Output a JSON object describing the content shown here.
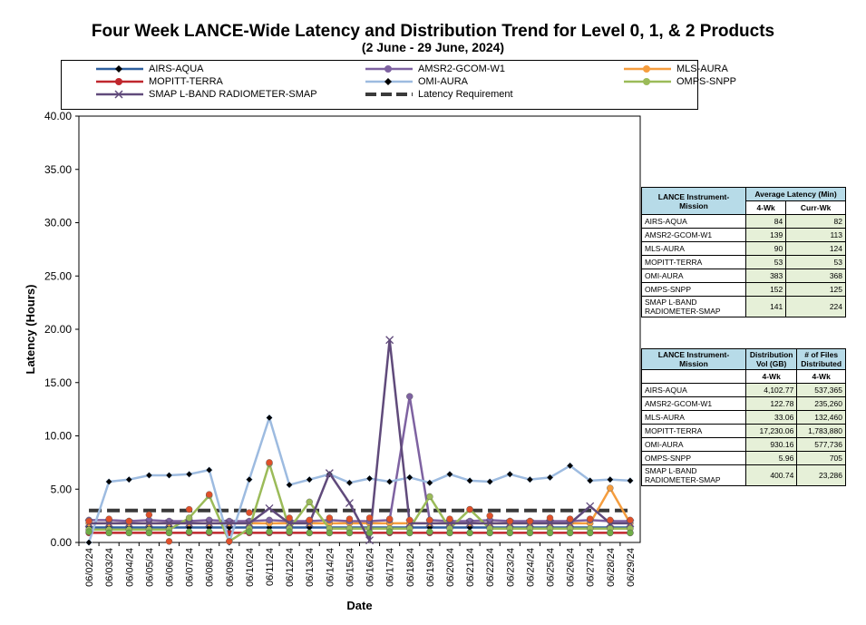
{
  "title": "Four Week LANCE-Wide Latency and Distribution Trend for Level 0, 1, & 2 Products",
  "subtitle": "(2  June   -  29  June,  2024)",
  "chart_data": {
    "type": "line",
    "xlabel": "Date",
    "ylabel": "Latency (Hours)",
    "ylim": [
      0,
      40
    ],
    "yticks": [
      "0.00",
      "5.00",
      "10.00",
      "15.00",
      "20.00",
      "25.00",
      "30.00",
      "35.00",
      "40.00"
    ],
    "categories": [
      "06/02/24",
      "06/03/24",
      "06/04/24",
      "06/05/24",
      "06/06/24",
      "06/07/24",
      "06/08/24",
      "06/09/24",
      "06/10/24",
      "06/11/24",
      "06/12/24",
      "06/13/24",
      "06/14/24",
      "06/15/24",
      "06/16/24",
      "06/17/24",
      "06/18/24",
      "06/19/24",
      "06/20/24",
      "06/21/24",
      "06/22/24",
      "06/23/24",
      "06/24/24",
      "06/25/24",
      "06/26/24",
      "06/27/24",
      "06/28/24",
      "06/29/24"
    ],
    "series": [
      {
        "name": "AIRS-AQUA",
        "color": "#2e5f9e",
        "marker": "diamond",
        "values": [
          1.4,
          1.4,
          1.4,
          1.4,
          1.4,
          1.4,
          1.4,
          1.4,
          1.4,
          1.4,
          1.4,
          1.4,
          1.4,
          1.4,
          1.4,
          1.4,
          1.4,
          1.4,
          1.4,
          1.4,
          1.4,
          1.4,
          1.4,
          1.4,
          1.4,
          1.4,
          1.4,
          1.4
        ]
      },
      {
        "name": "AMSR2-GCOM-W1",
        "color": "#7e62a1",
        "marker": "circle",
        "values": [
          2.1,
          2.1,
          2.0,
          2.1,
          2.0,
          2.0,
          2.1,
          2.0,
          2.0,
          2.1,
          2.0,
          2.0,
          2.1,
          2.0,
          2.0,
          2.1,
          13.7,
          2.1,
          2.0,
          2.0,
          2.1,
          2.0,
          2.0,
          2.0,
          2.0,
          2.1,
          2.0,
          2.0
        ]
      },
      {
        "name": "MLS-AURA",
        "color": "#f59d3e",
        "marker": "circle",
        "values": [
          1.8,
          1.8,
          1.8,
          1.8,
          1.8,
          1.8,
          1.8,
          1.8,
          1.8,
          1.8,
          1.8,
          1.8,
          1.8,
          1.8,
          1.8,
          1.8,
          1.8,
          1.8,
          1.8,
          1.8,
          1.8,
          1.8,
          1.8,
          1.8,
          1.8,
          1.8,
          5.1,
          1.8
        ]
      },
      {
        "name": "MOPITT-TERRA",
        "color": "#c0272d",
        "marker": "circle",
        "values": [
          0.9,
          0.9,
          0.9,
          0.9,
          0.9,
          0.9,
          0.9,
          0.9,
          0.9,
          0.9,
          0.9,
          0.9,
          0.9,
          0.9,
          0.9,
          0.9,
          0.9,
          0.9,
          0.9,
          0.9,
          0.9,
          0.9,
          0.9,
          0.9,
          0.9,
          0.9,
          0.9,
          0.9
        ]
      },
      {
        "name": "OMI-AURA",
        "color": "#9dbbe0",
        "marker": "diamond",
        "values": [
          0.0,
          5.7,
          5.9,
          6.3,
          6.3,
          6.4,
          6.8,
          0.0,
          5.9,
          11.7,
          5.4,
          5.9,
          6.4,
          5.6,
          6.0,
          5.7,
          6.1,
          5.6,
          6.4,
          5.8,
          5.7,
          6.4,
          5.9,
          6.1,
          7.2,
          5.8,
          5.9,
          5.8
        ]
      },
      {
        "name": "OMPS-SNPP",
        "color": "#9bbb59",
        "marker": "circle",
        "values": [
          1.2,
          1.2,
          1.2,
          1.2,
          1.2,
          2.3,
          4.4,
          0.1,
          1.3,
          7.4,
          1.3,
          3.8,
          1.3,
          1.3,
          1.3,
          1.3,
          1.3,
          4.3,
          1.3,
          3.1,
          1.3,
          1.3,
          1.3,
          1.3,
          1.3,
          1.3,
          1.3,
          1.3
        ]
      },
      {
        "name": "SMAP L-BAND RADIOMETER-SMAP",
        "color": "#604a7b",
        "marker": "x",
        "values": [
          1.8,
          1.8,
          1.8,
          1.8,
          1.8,
          1.8,
          1.8,
          1.8,
          1.8,
          3.2,
          1.8,
          1.8,
          6.5,
          3.7,
          0.2,
          19.0,
          1.8,
          1.8,
          1.8,
          1.8,
          1.8,
          1.8,
          1.8,
          1.8,
          1.8,
          3.4,
          1.8,
          1.8
        ]
      },
      {
        "name": "Latency Requirement",
        "color": "#3a3a3a",
        "marker": "none",
        "dashed": true,
        "values": [
          3,
          3,
          3,
          3,
          3,
          3,
          3,
          3,
          3,
          3,
          3,
          3,
          3,
          3,
          3,
          3,
          3,
          3,
          3,
          3,
          3,
          3,
          3,
          3,
          3,
          3,
          3,
          3
        ]
      }
    ],
    "overlay_points": [
      {
        "series": "OMPS-SNPP",
        "color": "#70ad47",
        "points": [
          [
            0,
            1.0
          ],
          [
            1,
            0.9
          ],
          [
            2,
            0.9
          ],
          [
            3,
            0.9
          ],
          [
            4,
            0.9
          ],
          [
            5,
            1.0
          ],
          [
            6,
            1.0
          ],
          [
            8,
            1.0
          ],
          [
            9,
            1.0
          ],
          [
            10,
            1.0
          ],
          [
            11,
            0.9
          ],
          [
            12,
            0.9
          ],
          [
            13,
            0.9
          ],
          [
            14,
            0.9
          ],
          [
            15,
            1.0
          ],
          [
            16,
            0.9
          ],
          [
            17,
            1.0
          ],
          [
            18,
            0.9
          ],
          [
            19,
            0.9
          ],
          [
            20,
            0.9
          ],
          [
            21,
            0.9
          ],
          [
            22,
            0.9
          ],
          [
            23,
            0.9
          ],
          [
            24,
            0.9
          ],
          [
            25,
            0.9
          ],
          [
            26,
            0.9
          ],
          [
            27,
            0.9
          ]
        ]
      },
      {
        "series": "OMPS-SNPP-red",
        "color": "#e0502a",
        "points": [
          [
            0,
            2.0
          ],
          [
            1,
            2.2
          ],
          [
            2,
            2.0
          ],
          [
            3,
            2.6
          ],
          [
            4,
            0.1
          ],
          [
            5,
            3.1
          ],
          [
            6,
            4.5
          ],
          [
            7,
            0.1
          ],
          [
            8,
            2.8
          ],
          [
            9,
            7.5
          ],
          [
            10,
            2.3
          ],
          [
            11,
            2.1
          ],
          [
            12,
            2.3
          ],
          [
            13,
            2.2
          ],
          [
            14,
            2.3
          ],
          [
            15,
            2.2
          ],
          [
            16,
            2.1
          ],
          [
            17,
            2.1
          ],
          [
            18,
            2.2
          ],
          [
            19,
            3.1
          ],
          [
            20,
            2.5
          ],
          [
            21,
            2.0
          ],
          [
            22,
            2.0
          ],
          [
            23,
            2.3
          ],
          [
            24,
            2.2
          ],
          [
            25,
            2.2
          ],
          [
            26,
            2.1
          ],
          [
            27,
            2.1
          ]
        ]
      }
    ],
    "legend": "top"
  },
  "legend_items": [
    {
      "name": "AIRS-AQUA"
    },
    {
      "name": "AMSR2-GCOM-W1"
    },
    {
      "name": "MLS-AURA"
    },
    {
      "name": "MOPITT-TERRA"
    },
    {
      "name": "OMI-AURA"
    },
    {
      "name": "OMPS-SNPP"
    },
    {
      "name": "SMAP L-BAND RADIOMETER-SMAP"
    },
    {
      "name": "Latency Requirement"
    }
  ],
  "table1": {
    "h_mission": "LANCE Instrument-Mission",
    "h_avg": "Average Latency (Min)",
    "h_4wk": "4-Wk",
    "h_curr": "Curr-Wk",
    "rows": [
      {
        "name": "AIRS-AQUA",
        "a": "84",
        "b": "82"
      },
      {
        "name": "AMSR2-GCOM-W1",
        "a": "139",
        "b": "113"
      },
      {
        "name": "MLS-AURA",
        "a": "90",
        "b": "124"
      },
      {
        "name": "MOPITT-TERRA",
        "a": "53",
        "b": "53"
      },
      {
        "name": "OMI-AURA",
        "a": "383",
        "b": "368"
      },
      {
        "name": "OMPS-SNPP",
        "a": "152",
        "b": "125"
      },
      {
        "name": "SMAP L-BAND RADIOMETER-SMAP",
        "a": "141",
        "b": "224"
      }
    ]
  },
  "table2": {
    "h_mission": "LANCE Instrument-Mission",
    "h_vol": "Distribution Vol (GB)",
    "h_files": "# of Files Distributed",
    "h_4wk_a": "4-Wk",
    "h_4wk_b": "4-Wk",
    "rows": [
      {
        "name": "AIRS-AQUA",
        "a": "4,102.77",
        "b": "537,365"
      },
      {
        "name": "AMSR2-GCOM-W1",
        "a": "122.78",
        "b": "235,260"
      },
      {
        "name": "MLS-AURA",
        "a": "33.06",
        "b": "132,460"
      },
      {
        "name": "MOPITT-TERRA",
        "a": "17,230.06",
        "b": "1,783,880"
      },
      {
        "name": "OMI-AURA",
        "a": "930.16",
        "b": "577,736"
      },
      {
        "name": "OMPS-SNPP",
        "a": "5.96",
        "b": "705"
      },
      {
        "name": "SMAP L-BAND RADIOMETER-SMAP",
        "a": "400.74",
        "b": "23,286"
      }
    ]
  }
}
